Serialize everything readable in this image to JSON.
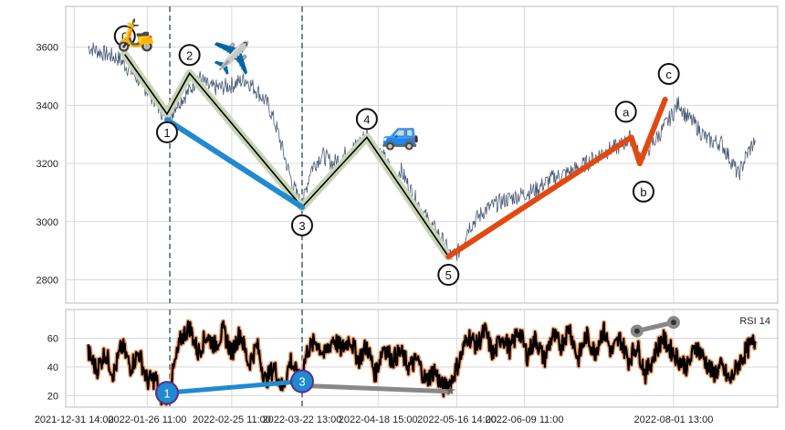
{
  "chart_data": [
    {
      "type": "line",
      "panel": "price",
      "x_tick_labels": [
        "2021-12-31 14:00",
        "2022-01-26 11:00",
        "2022-02-25 11:00",
        "2022-03-22 13:00",
        "2022-04-18 15:00",
        "2022-05-16 14:00",
        "2022-06-09 11:00",
        "2022-08-01 13:00"
      ],
      "x_tick_days": [
        0,
        26,
        56,
        81,
        108,
        136,
        160,
        213
      ],
      "y_ticks": [
        2800,
        3000,
        3200,
        3400,
        3600
      ],
      "ylim": [
        2720,
        3740
      ],
      "xlim": [
        -3,
        250
      ],
      "grid": true,
      "vlines_days": [
        34,
        81
      ],
      "price_anchors": [
        [
          5,
          3600
        ],
        [
          10,
          3580
        ],
        [
          16,
          3560
        ],
        [
          20,
          3520
        ],
        [
          27,
          3440
        ],
        [
          31,
          3380
        ],
        [
          33,
          3330
        ],
        [
          36,
          3400
        ],
        [
          41,
          3450
        ],
        [
          44,
          3500
        ],
        [
          48,
          3460
        ],
        [
          52,
          3460
        ],
        [
          56,
          3470
        ],
        [
          61,
          3490
        ],
        [
          65,
          3450
        ],
        [
          69,
          3400
        ],
        [
          72,
          3320
        ],
        [
          76,
          3180
        ],
        [
          78,
          3120
        ],
        [
          81,
          3050
        ],
        [
          84,
          3180
        ],
        [
          88,
          3230
        ],
        [
          92,
          3200
        ],
        [
          96,
          3230
        ],
        [
          100,
          3260
        ],
        [
          104,
          3300
        ],
        [
          106,
          3270
        ],
        [
          110,
          3220
        ],
        [
          114,
          3150
        ],
        [
          116,
          3180
        ],
        [
          120,
          3100
        ],
        [
          126,
          3000
        ],
        [
          130,
          2950
        ],
        [
          134,
          2880
        ],
        [
          137,
          2900
        ],
        [
          140,
          2980
        ],
        [
          146,
          3040
        ],
        [
          152,
          3070
        ],
        [
          158,
          3090
        ],
        [
          164,
          3110
        ],
        [
          170,
          3150
        ],
        [
          176,
          3170
        ],
        [
          182,
          3200
        ],
        [
          188,
          3240
        ],
        [
          194,
          3260
        ],
        [
          198,
          3290
        ],
        [
          201,
          3220
        ],
        [
          204,
          3250
        ],
        [
          208,
          3300
        ],
        [
          212,
          3360
        ],
        [
          215,
          3410
        ],
        [
          217,
          3370
        ],
        [
          221,
          3330
        ],
        [
          225,
          3280
        ],
        [
          230,
          3270
        ],
        [
          234,
          3200
        ],
        [
          236,
          3160
        ],
        [
          239,
          3230
        ],
        [
          242,
          3280
        ]
      ],
      "wave_points": [
        {
          "label": "0",
          "day": 18,
          "value": 3575
        },
        {
          "label": "1",
          "day": 33,
          "value": 3370
        },
        {
          "label": "2",
          "day": 41,
          "value": 3510
        },
        {
          "label": "3",
          "day": 81,
          "value": 3050
        },
        {
          "label": "4",
          "day": 104,
          "value": 3290
        },
        {
          "label": "5",
          "day": 133,
          "value": 2880
        }
      ],
      "blue_line": [
        {
          "day": 33,
          "value": 3350
        },
        {
          "day": 81,
          "value": 3050
        }
      ],
      "abc_points": [
        {
          "label": "a",
          "day": 198,
          "value": 3290
        },
        {
          "label": "b",
          "day": 201,
          "value": 3200
        },
        {
          "label": "c",
          "day": 210,
          "value": 3420
        }
      ],
      "emojis": [
        {
          "glyph": "🛵",
          "day": 22,
          "value": 3645
        },
        {
          "glyph": "✈️",
          "day": 56,
          "value": 3565
        },
        {
          "glyph": "🚙",
          "day": 116,
          "value": 3305
        }
      ]
    },
    {
      "type": "line",
      "panel": "rsi",
      "legend": "RSI 14",
      "legend_position": "top-right",
      "y_ticks": [
        20,
        40,
        60
      ],
      "ylim": [
        12,
        80
      ],
      "grid": true,
      "rsi_anchors": [
        [
          5,
          50
        ],
        [
          8,
          38
        ],
        [
          11,
          50
        ],
        [
          14,
          35
        ],
        [
          17,
          55
        ],
        [
          20,
          40
        ],
        [
          23,
          50
        ],
        [
          26,
          30
        ],
        [
          29,
          32
        ],
        [
          31,
          18
        ],
        [
          33,
          20
        ],
        [
          35,
          35
        ],
        [
          38,
          60
        ],
        [
          41,
          68
        ],
        [
          44,
          50
        ],
        [
          47,
          62
        ],
        [
          50,
          55
        ],
        [
          53,
          65
        ],
        [
          56,
          50
        ],
        [
          59,
          64
        ],
        [
          62,
          42
        ],
        [
          65,
          55
        ],
        [
          68,
          30
        ],
        [
          71,
          40
        ],
        [
          74,
          25
        ],
        [
          77,
          45
        ],
        [
          80,
          30
        ],
        [
          83,
          52
        ],
        [
          86,
          58
        ],
        [
          89,
          48
        ],
        [
          92,
          60
        ],
        [
          95,
          52
        ],
        [
          98,
          60
        ],
        [
          101,
          45
        ],
        [
          104,
          55
        ],
        [
          107,
          35
        ],
        [
          110,
          55
        ],
        [
          113,
          45
        ],
        [
          116,
          50
        ],
        [
          119,
          40
        ],
        [
          122,
          45
        ],
        [
          125,
          30
        ],
        [
          128,
          38
        ],
        [
          131,
          25
        ],
        [
          134,
          30
        ],
        [
          137,
          45
        ],
        [
          140,
          62
        ],
        [
          143,
          55
        ],
        [
          146,
          65
        ],
        [
          149,
          48
        ],
        [
          152,
          62
        ],
        [
          155,
          52
        ],
        [
          158,
          66
        ],
        [
          161,
          48
        ],
        [
          164,
          60
        ],
        [
          167,
          45
        ],
        [
          170,
          62
        ],
        [
          173,
          55
        ],
        [
          176,
          68
        ],
        [
          179,
          45
        ],
        [
          182,
          62
        ],
        [
          185,
          50
        ],
        [
          188,
          66
        ],
        [
          191,
          50
        ],
        [
          194,
          60
        ],
        [
          197,
          45
        ],
        [
          200,
          55
        ],
        [
          203,
          35
        ],
        [
          206,
          48
        ],
        [
          209,
          60
        ],
        [
          212,
          52
        ],
        [
          215,
          45
        ],
        [
          218,
          40
        ],
        [
          221,
          55
        ],
        [
          224,
          45
        ],
        [
          227,
          35
        ],
        [
          230,
          40
        ],
        [
          233,
          30
        ],
        [
          236,
          42
        ],
        [
          239,
          52
        ],
        [
          242,
          58
        ]
      ],
      "blue_segment": [
        {
          "label": "1",
          "day": 33,
          "value": 22
        },
        {
          "label": "3",
          "day": 81,
          "value": 30
        }
      ],
      "grey_segments": [
        [
          {
            "day": 81,
            "value": 27
          },
          {
            "day": 133,
            "value": 23
          }
        ],
        [
          {
            "day": 200,
            "value": 65
          },
          {
            "day": 213,
            "value": 71
          }
        ]
      ]
    }
  ],
  "colors": {
    "price": "#4a5a78",
    "impulse_fill": "#c8d4b4",
    "impulse_line": "#000000",
    "blue": "#1f8ad0",
    "red": "#e04a12",
    "rsi": "#000000",
    "rsi_halo": "#f0a070",
    "grey": "#888888",
    "vline": "#556677",
    "grid": "#d8d8d8",
    "frame": "#bbbbbb"
  }
}
